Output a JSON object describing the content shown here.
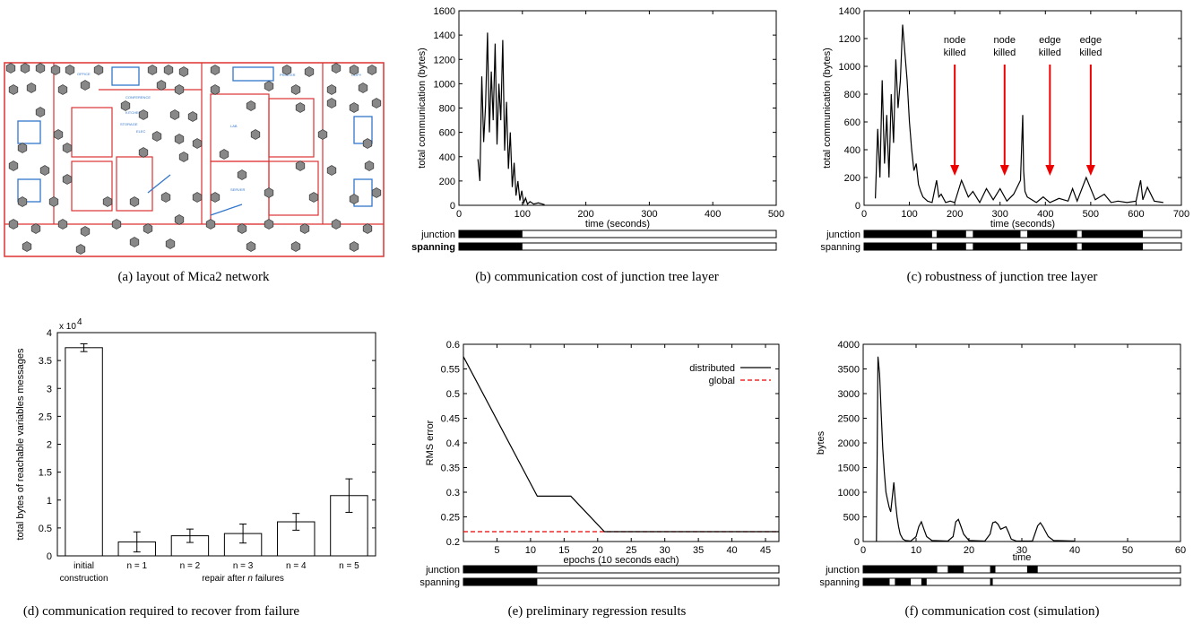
{
  "captions": {
    "a": "(a) layout of Mica2 network",
    "b": "(b) communication cost of junction tree layer",
    "c": "(c) robustness of junction tree layer",
    "d": "(d) communication required to recover from failure",
    "e": "(e) preliminary regression results",
    "f": "(f) communication cost (simulation)"
  },
  "floorplan": {
    "room_labels": [
      "OFFICE",
      "CONFERENCE",
      "KITCHEN",
      "STORAGE",
      "ELEC",
      "LAB",
      "SERVER",
      "PRINTER",
      "COPY"
    ]
  },
  "chart_data": [
    {
      "id": "b",
      "type": "line",
      "xlabel": "time (seconds)",
      "ylabel": "total communication (bytes)",
      "xlim": [
        0,
        500
      ],
      "ylim": [
        0,
        1600
      ],
      "xticks": [
        0,
        100,
        200,
        300,
        400,
        500
      ],
      "yticks": [
        0,
        200,
        400,
        600,
        800,
        1000,
        1200,
        1400,
        1600
      ],
      "series": [
        {
          "x": [
            30,
            33,
            36,
            39,
            42,
            45,
            48,
            51,
            54,
            57,
            60,
            63,
            66,
            69,
            72,
            75,
            78,
            81,
            84,
            87,
            90,
            93,
            96,
            99,
            102,
            105,
            108,
            112,
            118,
            125,
            135
          ],
          "values": [
            380,
            200,
            1060,
            520,
            820,
            1420,
            600,
            1100,
            700,
            1330,
            500,
            1000,
            700,
            1360,
            450,
            850,
            300,
            600,
            150,
            350,
            80,
            200,
            40,
            120,
            20,
            60,
            10,
            30,
            10,
            20,
            5
          ]
        }
      ],
      "bars": [
        {
          "label": "junction",
          "segments": [
            [
              0,
              100
            ]
          ]
        },
        {
          "label": "spanning",
          "segments": [
            [
              0,
              100
            ]
          ]
        }
      ]
    },
    {
      "id": "c",
      "type": "line",
      "xlabel": "time (seconds)",
      "ylabel": "total communication (bytes)",
      "xlim": [
        0,
        700
      ],
      "ylim": [
        0,
        1400
      ],
      "xticks": [
        0,
        100,
        200,
        300,
        400,
        500,
        600,
        700
      ],
      "yticks": [
        0,
        200,
        400,
        600,
        800,
        1000,
        1200,
        1400
      ],
      "series": [
        {
          "x": [
            25,
            30,
            35,
            40,
            45,
            50,
            55,
            60,
            65,
            70,
            75,
            80,
            85,
            90,
            95,
            100,
            105,
            110,
            115,
            120,
            125,
            130,
            140,
            150,
            160,
            165,
            170,
            180,
            190,
            200,
            215,
            230,
            240,
            255,
            270,
            285,
            300,
            315,
            330,
            345,
            350,
            352,
            355,
            360,
            370,
            380,
            395,
            410,
            430,
            450,
            460,
            470,
            490,
            510,
            530,
            545,
            560,
            580,
            600,
            610,
            615,
            625,
            640,
            660
          ],
          "values": [
            50,
            550,
            200,
            900,
            300,
            650,
            200,
            800,
            450,
            1050,
            700,
            900,
            1300,
            1100,
            900,
            600,
            400,
            250,
            300,
            150,
            100,
            60,
            30,
            20,
            180,
            60,
            80,
            20,
            30,
            20,
            180,
            60,
            100,
            20,
            120,
            40,
            120,
            30,
            80,
            180,
            650,
            250,
            100,
            60,
            40,
            20,
            60,
            20,
            50,
            30,
            120,
            30,
            200,
            40,
            80,
            20,
            30,
            20,
            30,
            180,
            40,
            130,
            30,
            20
          ]
        }
      ],
      "arrows": [
        {
          "line1": "node",
          "line2": "killed",
          "x": 200
        },
        {
          "line1": "node",
          "line2": "killed",
          "x": 310
        },
        {
          "line1": "edge",
          "line2": "killed",
          "x": 410
        },
        {
          "line1": "edge",
          "line2": "killed",
          "x": 500
        }
      ],
      "bars": [
        {
          "label": "junction",
          "segments": [
            [
              0,
              150
            ],
            [
              160,
              225
            ],
            [
              240,
              345
            ],
            [
              360,
              470
            ],
            [
              480,
              615
            ]
          ]
        },
        {
          "label": "spanning",
          "segments": [
            [
              0,
              150
            ],
            [
              160,
              225
            ],
            [
              240,
              345
            ],
            [
              360,
              470
            ],
            [
              480,
              615
            ]
          ]
        }
      ]
    },
    {
      "id": "d",
      "type": "bar",
      "ylabel": "total bytes of reachable variables messages",
      "yexp": "x 10",
      "yexp_sup": "4",
      "ylim": [
        0,
        4
      ],
      "yticks": [
        0,
        0.5,
        1,
        1.5,
        2,
        2.5,
        3,
        3.5,
        4
      ],
      "categories": [
        "initial",
        "n = 1",
        "n = 2",
        "n = 3",
        "n = 4",
        "n = 5"
      ],
      "category_line2": [
        "construction"
      ],
      "group_label_pre": "repair after ",
      "group_label_n": "n",
      "group_label_post": " failures",
      "values": [
        3.73,
        0.25,
        0.36,
        0.4,
        0.61,
        1.08
      ],
      "errors": [
        0.07,
        0.18,
        0.12,
        0.17,
        0.15,
        0.3
      ]
    },
    {
      "id": "e",
      "type": "line",
      "xlabel": "epochs (10 seconds each)",
      "ylabel": "RMS error",
      "xlim": [
        0,
        47
      ],
      "ylim": [
        0.2,
        0.6
      ],
      "xticks": [
        5,
        10,
        15,
        20,
        25,
        30,
        35,
        40,
        45
      ],
      "yticks": [
        0.2,
        0.25,
        0.3,
        0.35,
        0.4,
        0.45,
        0.5,
        0.55,
        0.6
      ],
      "legend": [
        "distributed",
        "global"
      ],
      "series": [
        {
          "name": "distributed",
          "x": [
            0,
            11,
            16,
            21,
            47
          ],
          "values": [
            0.575,
            0.292,
            0.292,
            0.22,
            0.22
          ]
        },
        {
          "name": "global",
          "x": [
            0,
            47
          ],
          "values": [
            0.22,
            0.22
          ]
        }
      ],
      "bars": [
        {
          "label": "junction",
          "segments": [
            [
              0,
              11
            ]
          ]
        },
        {
          "label": "spanning",
          "segments": [
            [
              0,
              11
            ]
          ]
        }
      ]
    },
    {
      "id": "f",
      "type": "line",
      "xlabel": "time",
      "ylabel": "bytes",
      "xlim": [
        0,
        60
      ],
      "ylim": [
        0,
        4000
      ],
      "xticks": [
        0,
        10,
        20,
        30,
        40,
        50,
        60
      ],
      "yticks": [
        0,
        500,
        1000,
        1500,
        2000,
        2500,
        3000,
        3500,
        4000
      ],
      "series": [
        {
          "x": [
            2.5,
            2.8,
            3.1,
            3.4,
            3.7,
            4.0,
            4.3,
            4.6,
            4.9,
            5.2,
            5.5,
            5.8,
            6.1,
            6.4,
            6.7,
            7.0,
            7.5,
            8,
            9,
            10,
            10.5,
            11,
            11.5,
            12,
            13,
            16,
            17,
            17.5,
            18,
            18.5,
            19,
            20,
            23,
            24,
            24.5,
            25,
            25.5,
            26,
            27,
            27.5,
            28,
            29,
            32,
            33,
            33.5,
            34,
            35,
            36,
            40
          ],
          "values": [
            0,
            3750,
            3400,
            2600,
            1900,
            1400,
            1000,
            850,
            700,
            600,
            900,
            1200,
            800,
            500,
            300,
            150,
            50,
            20,
            10,
            100,
            300,
            400,
            250,
            100,
            20,
            10,
            100,
            400,
            450,
            300,
            150,
            20,
            10,
            150,
            380,
            400,
            350,
            250,
            300,
            180,
            50,
            10,
            10,
            320,
            380,
            300,
            100,
            20,
            10
          ]
        }
      ],
      "bars": [
        {
          "label": "junction",
          "segments": [
            [
              0,
              14
            ],
            [
              16,
              19
            ],
            [
              24,
              25
            ],
            [
              31,
              33
            ]
          ]
        },
        {
          "label": "spanning",
          "segments": [
            [
              0,
              5
            ],
            [
              6,
              9
            ],
            [
              11,
              12
            ],
            [
              24,
              24.5
            ]
          ]
        }
      ]
    }
  ]
}
